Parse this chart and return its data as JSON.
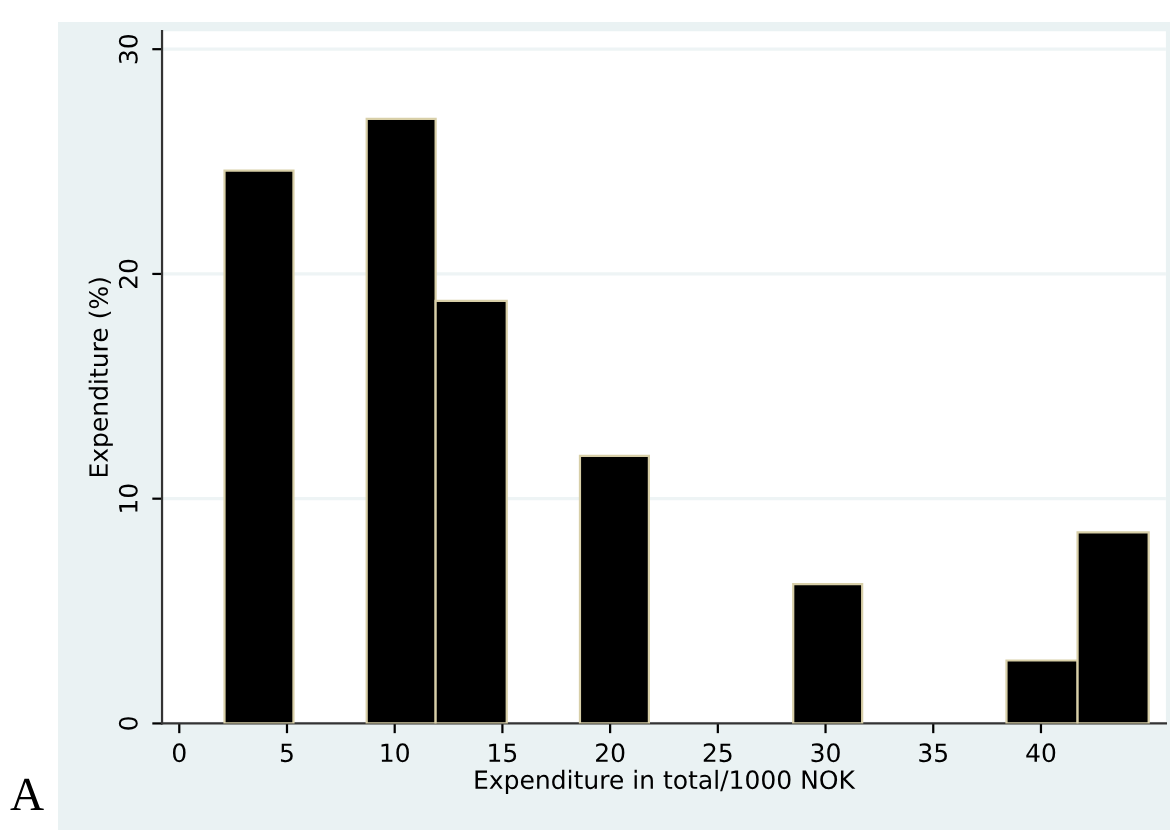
{
  "chart_data": {
    "type": "histogram",
    "xlabel": "Expenditure in total/1000 NOK",
    "ylabel": "Expenditure (%)",
    "bins": [
      2.1,
      5.3,
      8.7,
      11.9,
      15.2,
      18.6,
      21.8,
      28.5,
      31.7,
      38.4,
      41.7,
      45.0
    ],
    "values": [
      24.6,
      0,
      26.9,
      18.8,
      0,
      11.9,
      0,
      6.2,
      0,
      2.8,
      8.5
    ],
    "color": "#000000",
    "xlim": [
      -0.8,
      45.8
    ],
    "xticks": [
      0,
      5,
      10,
      15,
      20,
      25,
      30,
      35,
      40
    ],
    "ylim": [
      0,
      30.8
    ],
    "yticks": [
      0,
      10,
      20,
      30
    ],
    "grid": "y",
    "annotations": [
      "A"
    ]
  }
}
